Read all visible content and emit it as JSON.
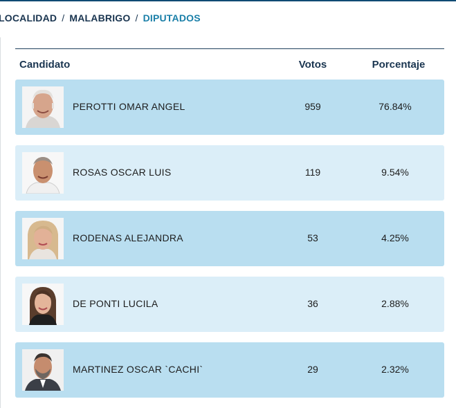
{
  "breadcrumb": {
    "items": [
      "LOCALIDAD",
      "MALABRIGO",
      "DIPUTADOS"
    ],
    "separator": "/"
  },
  "table": {
    "headers": {
      "candidate": "Candidato",
      "votes": "Votos",
      "percentage": "Porcentaje"
    },
    "rows": [
      {
        "name": "PEROTTI OMAR ANGEL",
        "votes": "959",
        "percentage": "76.84%"
      },
      {
        "name": "ROSAS OSCAR LUIS",
        "votes": "119",
        "percentage": "9.54%"
      },
      {
        "name": "RODENAS ALEJANDRA",
        "votes": "53",
        "percentage": "4.25%"
      },
      {
        "name": "DE PONTI LUCILA",
        "votes": "36",
        "percentage": "2.88%"
      },
      {
        "name": "MARTINEZ OSCAR `CACHI`",
        "votes": "29",
        "percentage": "2.32%"
      }
    ]
  },
  "colors": {
    "header_text": "#1a3550",
    "breadcrumb_current": "#1a7fa8",
    "row_dark": "#b9def0",
    "row_light": "#dbeef8"
  }
}
